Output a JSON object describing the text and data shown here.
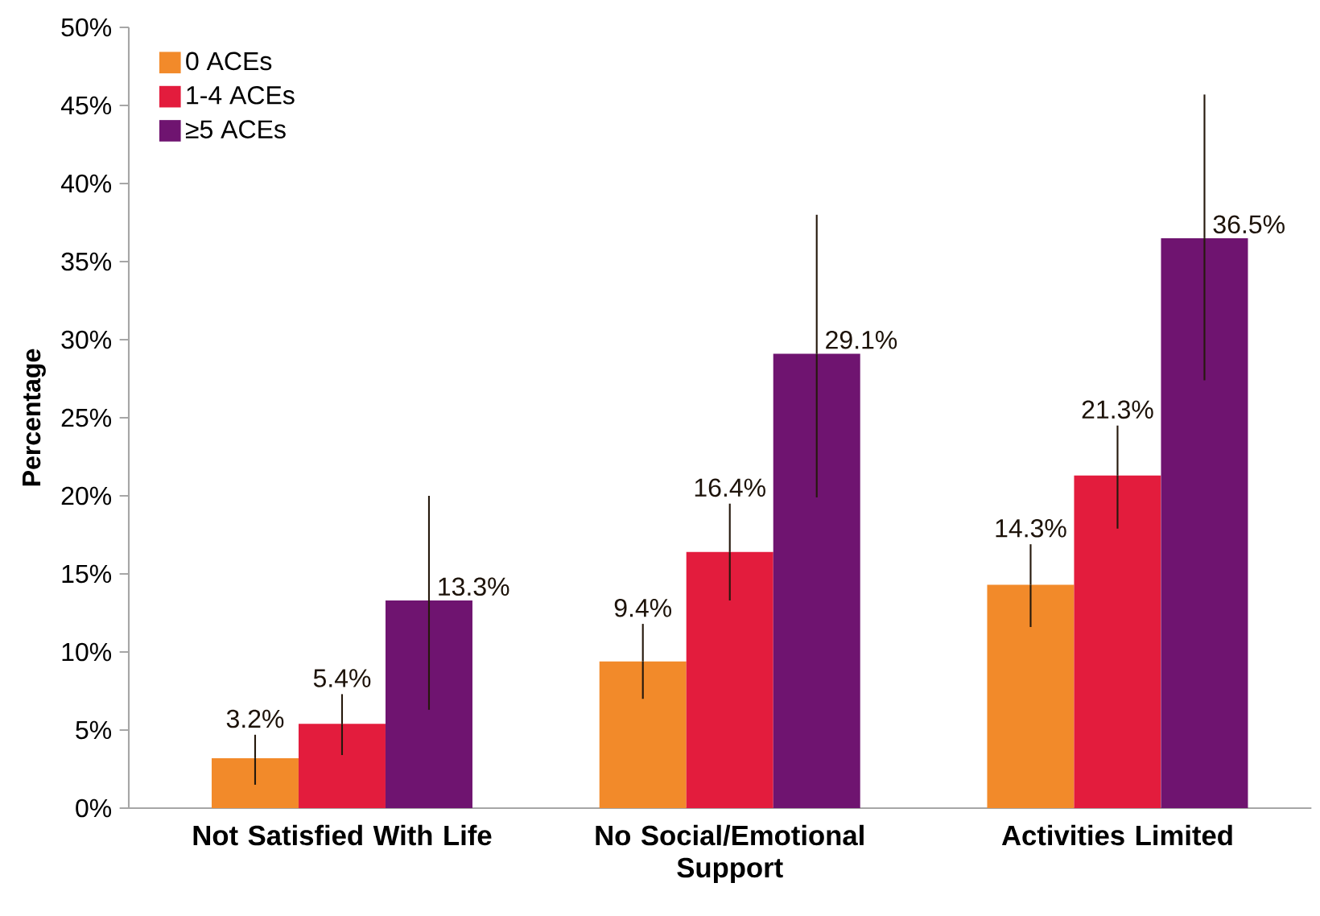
{
  "chart_data": {
    "type": "bar",
    "ylabel": "Percentage",
    "categories": [
      "Not Satisfied With Life",
      "No Social/Emotional Support",
      "Activities Limited"
    ],
    "series": [
      {
        "name": "0 ACEs",
        "color": "#f28a2a",
        "values": [
          3.2,
          9.4,
          14.3
        ],
        "errors": [
          [
            1.5,
            4.7
          ],
          [
            7.0,
            11.8
          ],
          [
            11.6,
            16.9
          ]
        ],
        "value_labels": [
          "3.2%",
          "9.4%",
          "14.3%"
        ]
      },
      {
        "name": "1-4 ACEs",
        "color": "#e31c3d",
        "values": [
          5.4,
          16.4,
          21.3
        ],
        "errors": [
          [
            3.4,
            7.3
          ],
          [
            13.3,
            19.5
          ],
          [
            17.9,
            24.5
          ]
        ],
        "value_labels": [
          "5.4%",
          "16.4%",
          "21.3%"
        ]
      },
      {
        "name": "≥5 ACEs",
        "color": "#6f1470",
        "values": [
          13.3,
          29.1,
          36.5
        ],
        "errors": [
          [
            6.3,
            20.0
          ],
          [
            19.9,
            38.0
          ],
          [
            27.4,
            45.7
          ]
        ],
        "value_labels": [
          "13.3%",
          "29.1%",
          "36.5%"
        ]
      }
    ],
    "ylim": [
      0,
      50
    ],
    "yticks": [
      {
        "value": 0,
        "label": "0%"
      },
      {
        "value": 5,
        "label": "5%"
      },
      {
        "value": 10,
        "label": "10%"
      },
      {
        "value": 15,
        "label": "15%"
      },
      {
        "value": 20,
        "label": "20%"
      },
      {
        "value": 25,
        "label": "25%"
      },
      {
        "value": 30,
        "label": "30%"
      },
      {
        "value": 35,
        "label": "35%"
      },
      {
        "value": 40,
        "label": "40%"
      },
      {
        "value": 45,
        "label": "45%"
      },
      {
        "value": 50,
        "label": "50%"
      }
    ],
    "legend": "top left",
    "grid": false
  }
}
